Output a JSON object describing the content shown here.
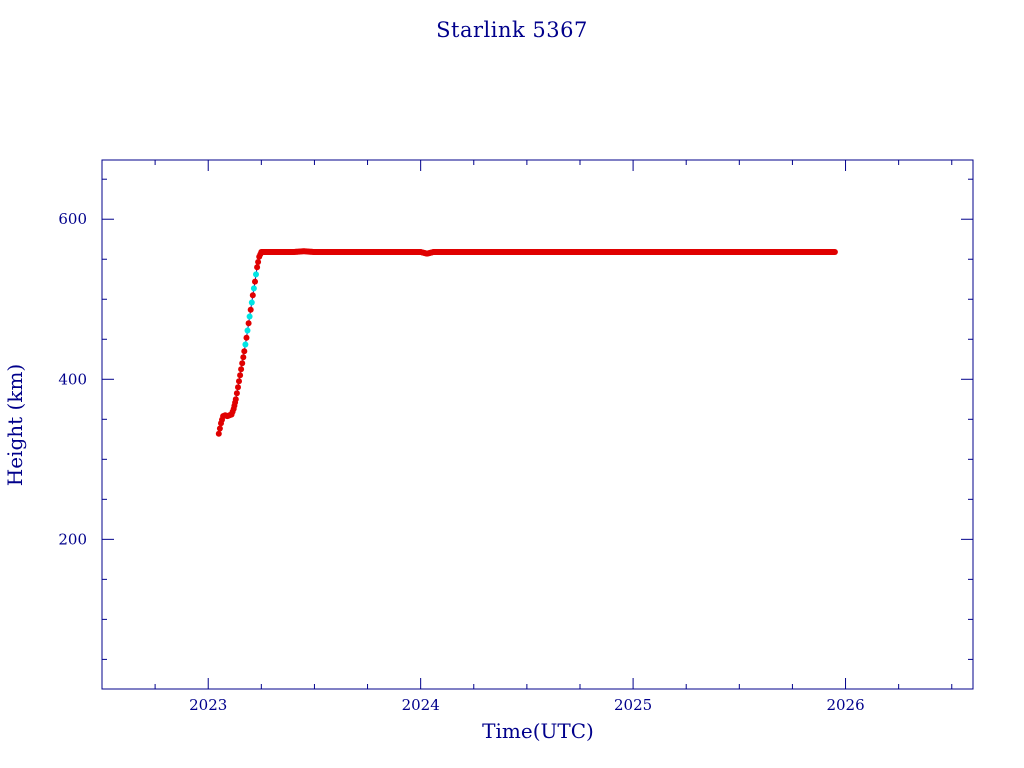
{
  "chart_data": {
    "type": "scatter",
    "title": "Starlink 5367",
    "xlabel": "Time(UTC)",
    "ylabel": "Height (km)",
    "xlim": [
      2022.5,
      2026.6
    ],
    "ylim": [
      13,
      674
    ],
    "x_ticks": [
      2023,
      2024,
      2025,
      2026
    ],
    "y_ticks": [
      200,
      400,
      600
    ],
    "grid": false,
    "colors": {
      "axis": "#00008b",
      "primary": "#e00000",
      "secondary": "#00e5e5",
      "line": "#1a1aa0"
    },
    "series": [
      {
        "points": [
          [
            2023.05,
            332
          ],
          [
            2023.06,
            345
          ],
          [
            2023.07,
            354
          ],
          [
            2023.08,
            355
          ],
          [
            2023.09,
            354
          ],
          [
            2023.1,
            355
          ],
          [
            2023.11,
            356
          ],
          [
            2023.12,
            363
          ],
          [
            2023.13,
            375
          ],
          [
            2023.14,
            390
          ],
          [
            2023.15,
            405
          ],
          [
            2023.16,
            420
          ],
          [
            2023.17,
            435
          ],
          [
            2023.18,
            452
          ],
          [
            2023.19,
            470
          ],
          [
            2023.2,
            487
          ],
          [
            2023.21,
            505
          ],
          [
            2023.22,
            522
          ],
          [
            2023.23,
            540
          ],
          [
            2023.24,
            553
          ],
          [
            2023.25,
            559
          ],
          [
            2023.27,
            559
          ],
          [
            2023.3,
            559
          ],
          [
            2023.35,
            559
          ],
          [
            2023.4,
            559
          ],
          [
            2023.45,
            560
          ],
          [
            2023.5,
            559
          ],
          [
            2023.6,
            559
          ],
          [
            2023.7,
            559
          ],
          [
            2023.8,
            559
          ],
          [
            2023.9,
            559
          ],
          [
            2024.0,
            559
          ],
          [
            2024.03,
            557
          ],
          [
            2024.06,
            559
          ],
          [
            2024.1,
            559
          ],
          [
            2024.2,
            559
          ],
          [
            2024.3,
            559
          ],
          [
            2024.4,
            559
          ],
          [
            2024.5,
            559
          ],
          [
            2024.6,
            559
          ],
          [
            2024.7,
            559
          ],
          [
            2024.8,
            559
          ],
          [
            2024.9,
            559
          ],
          [
            2025.0,
            559
          ],
          [
            2025.1,
            559
          ],
          [
            2025.2,
            559
          ],
          [
            2025.3,
            559
          ],
          [
            2025.4,
            559
          ],
          [
            2025.5,
            559
          ],
          [
            2025.6,
            559
          ],
          [
            2025.7,
            559
          ],
          [
            2025.8,
            559
          ],
          [
            2025.9,
            559
          ],
          [
            2025.95,
            559
          ]
        ]
      }
    ]
  }
}
